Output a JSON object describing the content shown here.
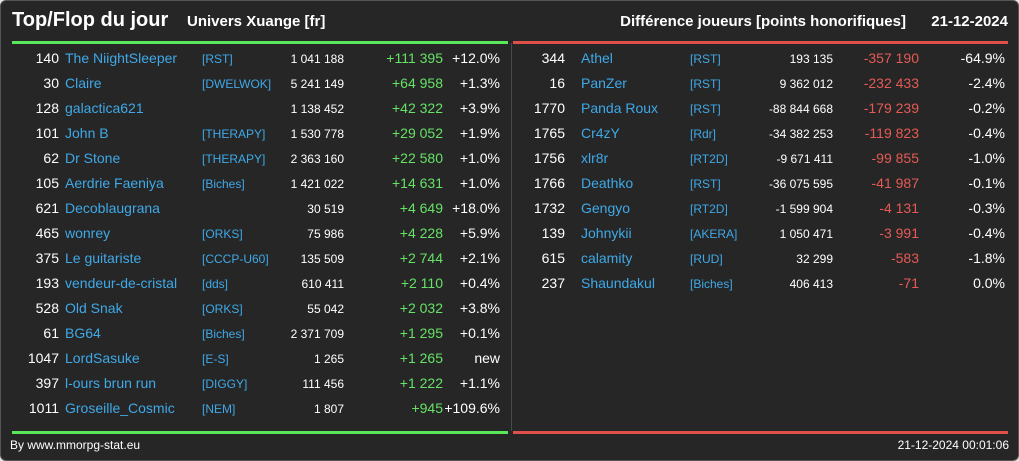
{
  "header": {
    "title": "Top/Flop du jour",
    "universe": "Univers Xuange [fr]",
    "metric": "Différence joueurs [points honorifiques]",
    "date": "21-12-2024"
  },
  "colors": {
    "background": "#262626",
    "top_bar": "#5ae65a",
    "flop_bar": "#e0504a",
    "positive": "#66e266",
    "negative": "#e55a55",
    "link": "#3fa9e8"
  },
  "top": [
    {
      "rank": "140",
      "name": "The NiightSleeper",
      "alliance": "[RST]",
      "points": "1 041 188",
      "diff": "+111 395",
      "pct": "+12.0%"
    },
    {
      "rank": "30",
      "name": "Claire",
      "alliance": "[DWELWOK]",
      "points": "5 241 149",
      "diff": "+64 958",
      "pct": "+1.3%"
    },
    {
      "rank": "128",
      "name": "galactica621",
      "alliance": "",
      "points": "1 138 452",
      "diff": "+42 322",
      "pct": "+3.9%"
    },
    {
      "rank": "101",
      "name": "John B",
      "alliance": "[THERAPY]",
      "points": "1 530 778",
      "diff": "+29 052",
      "pct": "+1.9%"
    },
    {
      "rank": "62",
      "name": "Dr Stone",
      "alliance": "[THERAPY]",
      "points": "2 363 160",
      "diff": "+22 580",
      "pct": "+1.0%"
    },
    {
      "rank": "105",
      "name": "Aerdrie Faeniya",
      "alliance": "[Biches]",
      "points": "1 421 022",
      "diff": "+14 631",
      "pct": "+1.0%"
    },
    {
      "rank": "621",
      "name": "Decoblaugrana",
      "alliance": "",
      "points": "30 519",
      "diff": "+4 649",
      "pct": "+18.0%"
    },
    {
      "rank": "465",
      "name": "wonrey",
      "alliance": "[ORKS]",
      "points": "75 986",
      "diff": "+4 228",
      "pct": "+5.9%"
    },
    {
      "rank": "375",
      "name": "Le guitariste",
      "alliance": "[CCCP-U60]",
      "points": "135 509",
      "diff": "+2 744",
      "pct": "+2.1%"
    },
    {
      "rank": "193",
      "name": "vendeur-de-cristal",
      "alliance": "[dds]",
      "points": "610 411",
      "diff": "+2 110",
      "pct": "+0.4%"
    },
    {
      "rank": "528",
      "name": "Old Snak",
      "alliance": "[ORKS]",
      "points": "55 042",
      "diff": "+2 032",
      "pct": "+3.8%"
    },
    {
      "rank": "61",
      "name": "BG64",
      "alliance": "[Biches]",
      "points": "2 371 709",
      "diff": "+1 295",
      "pct": "+0.1%"
    },
    {
      "rank": "1047",
      "name": "LordSasuke",
      "alliance": "[E-S]",
      "points": "1 265",
      "diff": "+1 265",
      "pct": "new"
    },
    {
      "rank": "397",
      "name": "l-ours brun run",
      "alliance": "[DIGGY]",
      "points": "111 456",
      "diff": "+1 222",
      "pct": "+1.1%"
    },
    {
      "rank": "1011",
      "name": "Groseille_Cosmic",
      "alliance": "[NEM]",
      "points": "1 807",
      "diff": "+945",
      "pct": "+109.6%"
    }
  ],
  "flop": [
    {
      "rank": "344",
      "name": "Athel",
      "alliance": "[RST]",
      "points": "193 135",
      "diff": "-357 190",
      "pct": "-64.9%"
    },
    {
      "rank": "16",
      "name": "PanZer",
      "alliance": "[RST]",
      "points": "9 362 012",
      "diff": "-232 433",
      "pct": "-2.4%"
    },
    {
      "rank": "1770",
      "name": "Panda Roux",
      "alliance": "[RST]",
      "points": "-88 844 668",
      "diff": "-179 239",
      "pct": "-0.2%"
    },
    {
      "rank": "1765",
      "name": "Cr4zY",
      "alliance": "[Rdr]",
      "points": "-34 382 253",
      "diff": "-119 823",
      "pct": "-0.4%"
    },
    {
      "rank": "1756",
      "name": "xlr8r",
      "alliance": "[RT2D]",
      "points": "-9 671 411",
      "diff": "-99 855",
      "pct": "-1.0%"
    },
    {
      "rank": "1766",
      "name": "Deathko",
      "alliance": "[RST]",
      "points": "-36 075 595",
      "diff": "-41 987",
      "pct": "-0.1%"
    },
    {
      "rank": "1732",
      "name": "Gengyo",
      "alliance": "[RT2D]",
      "points": "-1 599 904",
      "diff": "-4 131",
      "pct": "-0.3%"
    },
    {
      "rank": "139",
      "name": "Johnykii",
      "alliance": "[AKERA]",
      "points": "1 050 471",
      "diff": "-3 991",
      "pct": "-0.4%"
    },
    {
      "rank": "615",
      "name": "calamity",
      "alliance": "[RUD]",
      "points": "32 299",
      "diff": "-583",
      "pct": "-1.8%"
    },
    {
      "rank": "237",
      "name": "Shaundakul",
      "alliance": "[Biches]",
      "points": "406 413",
      "diff": "-71",
      "pct": "0.0%"
    }
  ],
  "footer": {
    "source": "By www.mmorpg-stat.eu",
    "timestamp": "21-12-2024 00:01:06"
  }
}
